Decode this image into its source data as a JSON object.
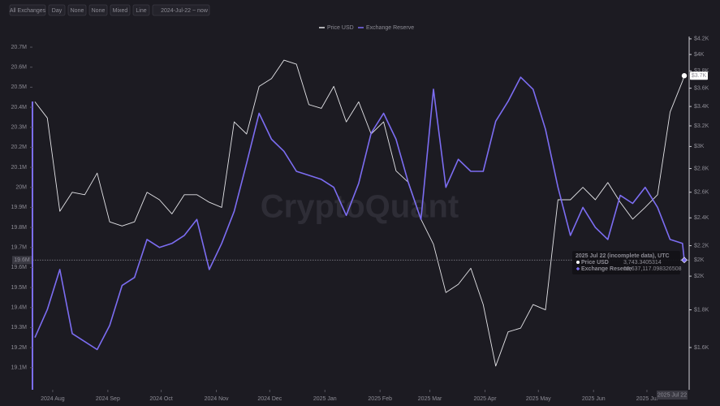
{
  "chart_data": {
    "type": "line",
    "toolbar": [
      "All Exchanges",
      "Day",
      "None",
      "None",
      "Mixed",
      "Line",
      "2024-Jul-22 ~ now"
    ],
    "watermark": "CryptoQuant",
    "x": [
      "2024-07-22",
      "2024-07-29",
      "2024-08-05",
      "2024-08-12",
      "2024-08-19",
      "2024-08-26",
      "2024-09-02",
      "2024-09-09",
      "2024-09-16",
      "2024-09-23",
      "2024-09-30",
      "2024-10-07",
      "2024-10-14",
      "2024-10-21",
      "2024-10-28",
      "2024-11-04",
      "2024-11-11",
      "2024-11-18",
      "2024-11-25",
      "2024-12-02",
      "2024-12-09",
      "2024-12-16",
      "2024-12-23",
      "2024-12-30",
      "2025-01-06",
      "2025-01-13",
      "2025-01-20",
      "2025-01-27",
      "2025-02-03",
      "2025-02-10",
      "2025-02-17",
      "2025-02-24",
      "2025-03-03",
      "2025-03-10",
      "2025-03-17",
      "2025-03-24",
      "2025-03-31",
      "2025-04-07",
      "2025-04-14",
      "2025-04-21",
      "2025-04-28",
      "2025-05-05",
      "2025-05-12",
      "2025-05-19",
      "2025-05-26",
      "2025-06-02",
      "2025-06-09",
      "2025-06-16",
      "2025-06-23",
      "2025-06-30",
      "2025-07-07",
      "2025-07-14",
      "2025-07-21",
      "2025-07-22"
    ],
    "xticks": [
      {
        "value": "2024-08-01",
        "label": "2024 Aug"
      },
      {
        "value": "2024-09-01",
        "label": "2024 Sep"
      },
      {
        "value": "2024-10-01",
        "label": "2024 Oct"
      },
      {
        "value": "2024-11-01",
        "label": "2024 Nov"
      },
      {
        "value": "2024-12-01",
        "label": "2024 Dec"
      },
      {
        "value": "2025-01-01",
        "label": "2025 Jan"
      },
      {
        "value": "2025-02-01",
        "label": "2025 Feb"
      },
      {
        "value": "2025-03-01",
        "label": "2025 Mar"
      },
      {
        "value": "2025-04-01",
        "label": "2025 Apr"
      },
      {
        "value": "2025-05-01",
        "label": "2025 May"
      },
      {
        "value": "2025-06-01",
        "label": "2025 Jun"
      },
      {
        "value": "2025-07-01",
        "label": "2025 Jul"
      }
    ],
    "series": [
      {
        "name": "Price USD",
        "color": "#e4e4e8",
        "axis": "y2",
        "last_label": "$3.7K",
        "values": [
          3450,
          3280,
          2450,
          2600,
          2580,
          2760,
          2370,
          2340,
          2370,
          2600,
          2540,
          2430,
          2580,
          2580,
          2520,
          2480,
          3240,
          3120,
          3620,
          3710,
          3930,
          3880,
          3420,
          3380,
          3620,
          3240,
          3450,
          3120,
          3240,
          2780,
          2680,
          2390,
          2210,
          1900,
          1950,
          2050,
          1830,
          1510,
          1680,
          1700,
          1830,
          1800,
          2540,
          2540,
          2640,
          2540,
          2680,
          2520,
          2390,
          2480,
          2580,
          3340,
          3680,
          3743.3405314
        ]
      },
      {
        "name": "Exchange Reserve",
        "color": "#7c6df2",
        "axis": "y",
        "values": [
          19250000,
          19390000,
          19590000,
          19270000,
          19230000,
          19190000,
          19310000,
          19510000,
          19550000,
          19740000,
          19700000,
          19720000,
          19760000,
          19840000,
          19590000,
          19720000,
          19880000,
          20120000,
          20370000,
          20240000,
          20180000,
          20080000,
          20060000,
          20040000,
          20000000,
          19860000,
          20020000,
          20270000,
          20370000,
          20240000,
          20020000,
          19840000,
          20490000,
          20000000,
          20140000,
          20080000,
          20080000,
          20330000,
          20430000,
          20550000,
          20490000,
          20290000,
          20000000,
          19760000,
          19900000,
          19800000,
          19740000,
          19960000,
          19920000,
          20000000,
          19900000,
          19740000,
          19720000,
          19637117.098326508
        ]
      }
    ],
    "ylim": [
      19030000,
      20753000
    ],
    "yticks": [
      {
        "value": 19100000,
        "label": "19.1M"
      },
      {
        "value": 19200000,
        "label": "19.2M"
      },
      {
        "value": 19300000,
        "label": "19.3M"
      },
      {
        "value": 19400000,
        "label": "19.4M"
      },
      {
        "value": 19500000,
        "label": "19.5M"
      },
      {
        "value": 19600000,
        "label": "19.6M"
      },
      {
        "value": 19700000,
        "label": "19.7M"
      },
      {
        "value": 19800000,
        "label": "19.8M"
      },
      {
        "value": 19900000,
        "label": "19.9M"
      },
      {
        "value": 20000000,
        "label": "20M"
      },
      {
        "value": 20100000,
        "label": "20.1M"
      },
      {
        "value": 20200000,
        "label": "20.2M"
      },
      {
        "value": 20300000,
        "label": "20.3M"
      },
      {
        "value": 20400000,
        "label": "20.4M"
      },
      {
        "value": 20500000,
        "label": "20.5M"
      },
      {
        "value": 20600000,
        "label": "20.6M"
      },
      {
        "value": 20700000,
        "label": "20.7M"
      }
    ],
    "y2lim": [
      1438,
      4231
    ],
    "y2log": true,
    "y2ticks": [
      {
        "value": 1600,
        "label": "$1.6K"
      },
      {
        "value": 1800,
        "label": "$1.8K"
      },
      {
        "value": 2000,
        "label": "$2K"
      },
      {
        "value": 2200,
        "label": "$2.2K"
      },
      {
        "value": 2400,
        "label": "$2.4K"
      },
      {
        "value": 2600,
        "label": "$2.6K"
      },
      {
        "value": 2800,
        "label": "$2.8K"
      },
      {
        "value": 3000,
        "label": "$3K"
      },
      {
        "value": 3200,
        "label": "$3.2K"
      },
      {
        "value": 3400,
        "label": "$3.4K"
      },
      {
        "value": 3600,
        "label": "$3.6K"
      },
      {
        "value": 3800,
        "label": "$3.8K"
      },
      {
        "value": 4000,
        "label": "$4K"
      },
      {
        "value": 4200,
        "label": "$4.2K"
      }
    ],
    "grid": false,
    "crosshair": {
      "x_label": "2025 Jul 22",
      "y_label": "19.6M",
      "y2_label": "$2K"
    },
    "tooltip": {
      "title": "2025 Jul 22 (incomplete data), UTC",
      "value_labels": [
        "3,743.3405314",
        "19,637,117.098326508"
      ]
    }
  }
}
